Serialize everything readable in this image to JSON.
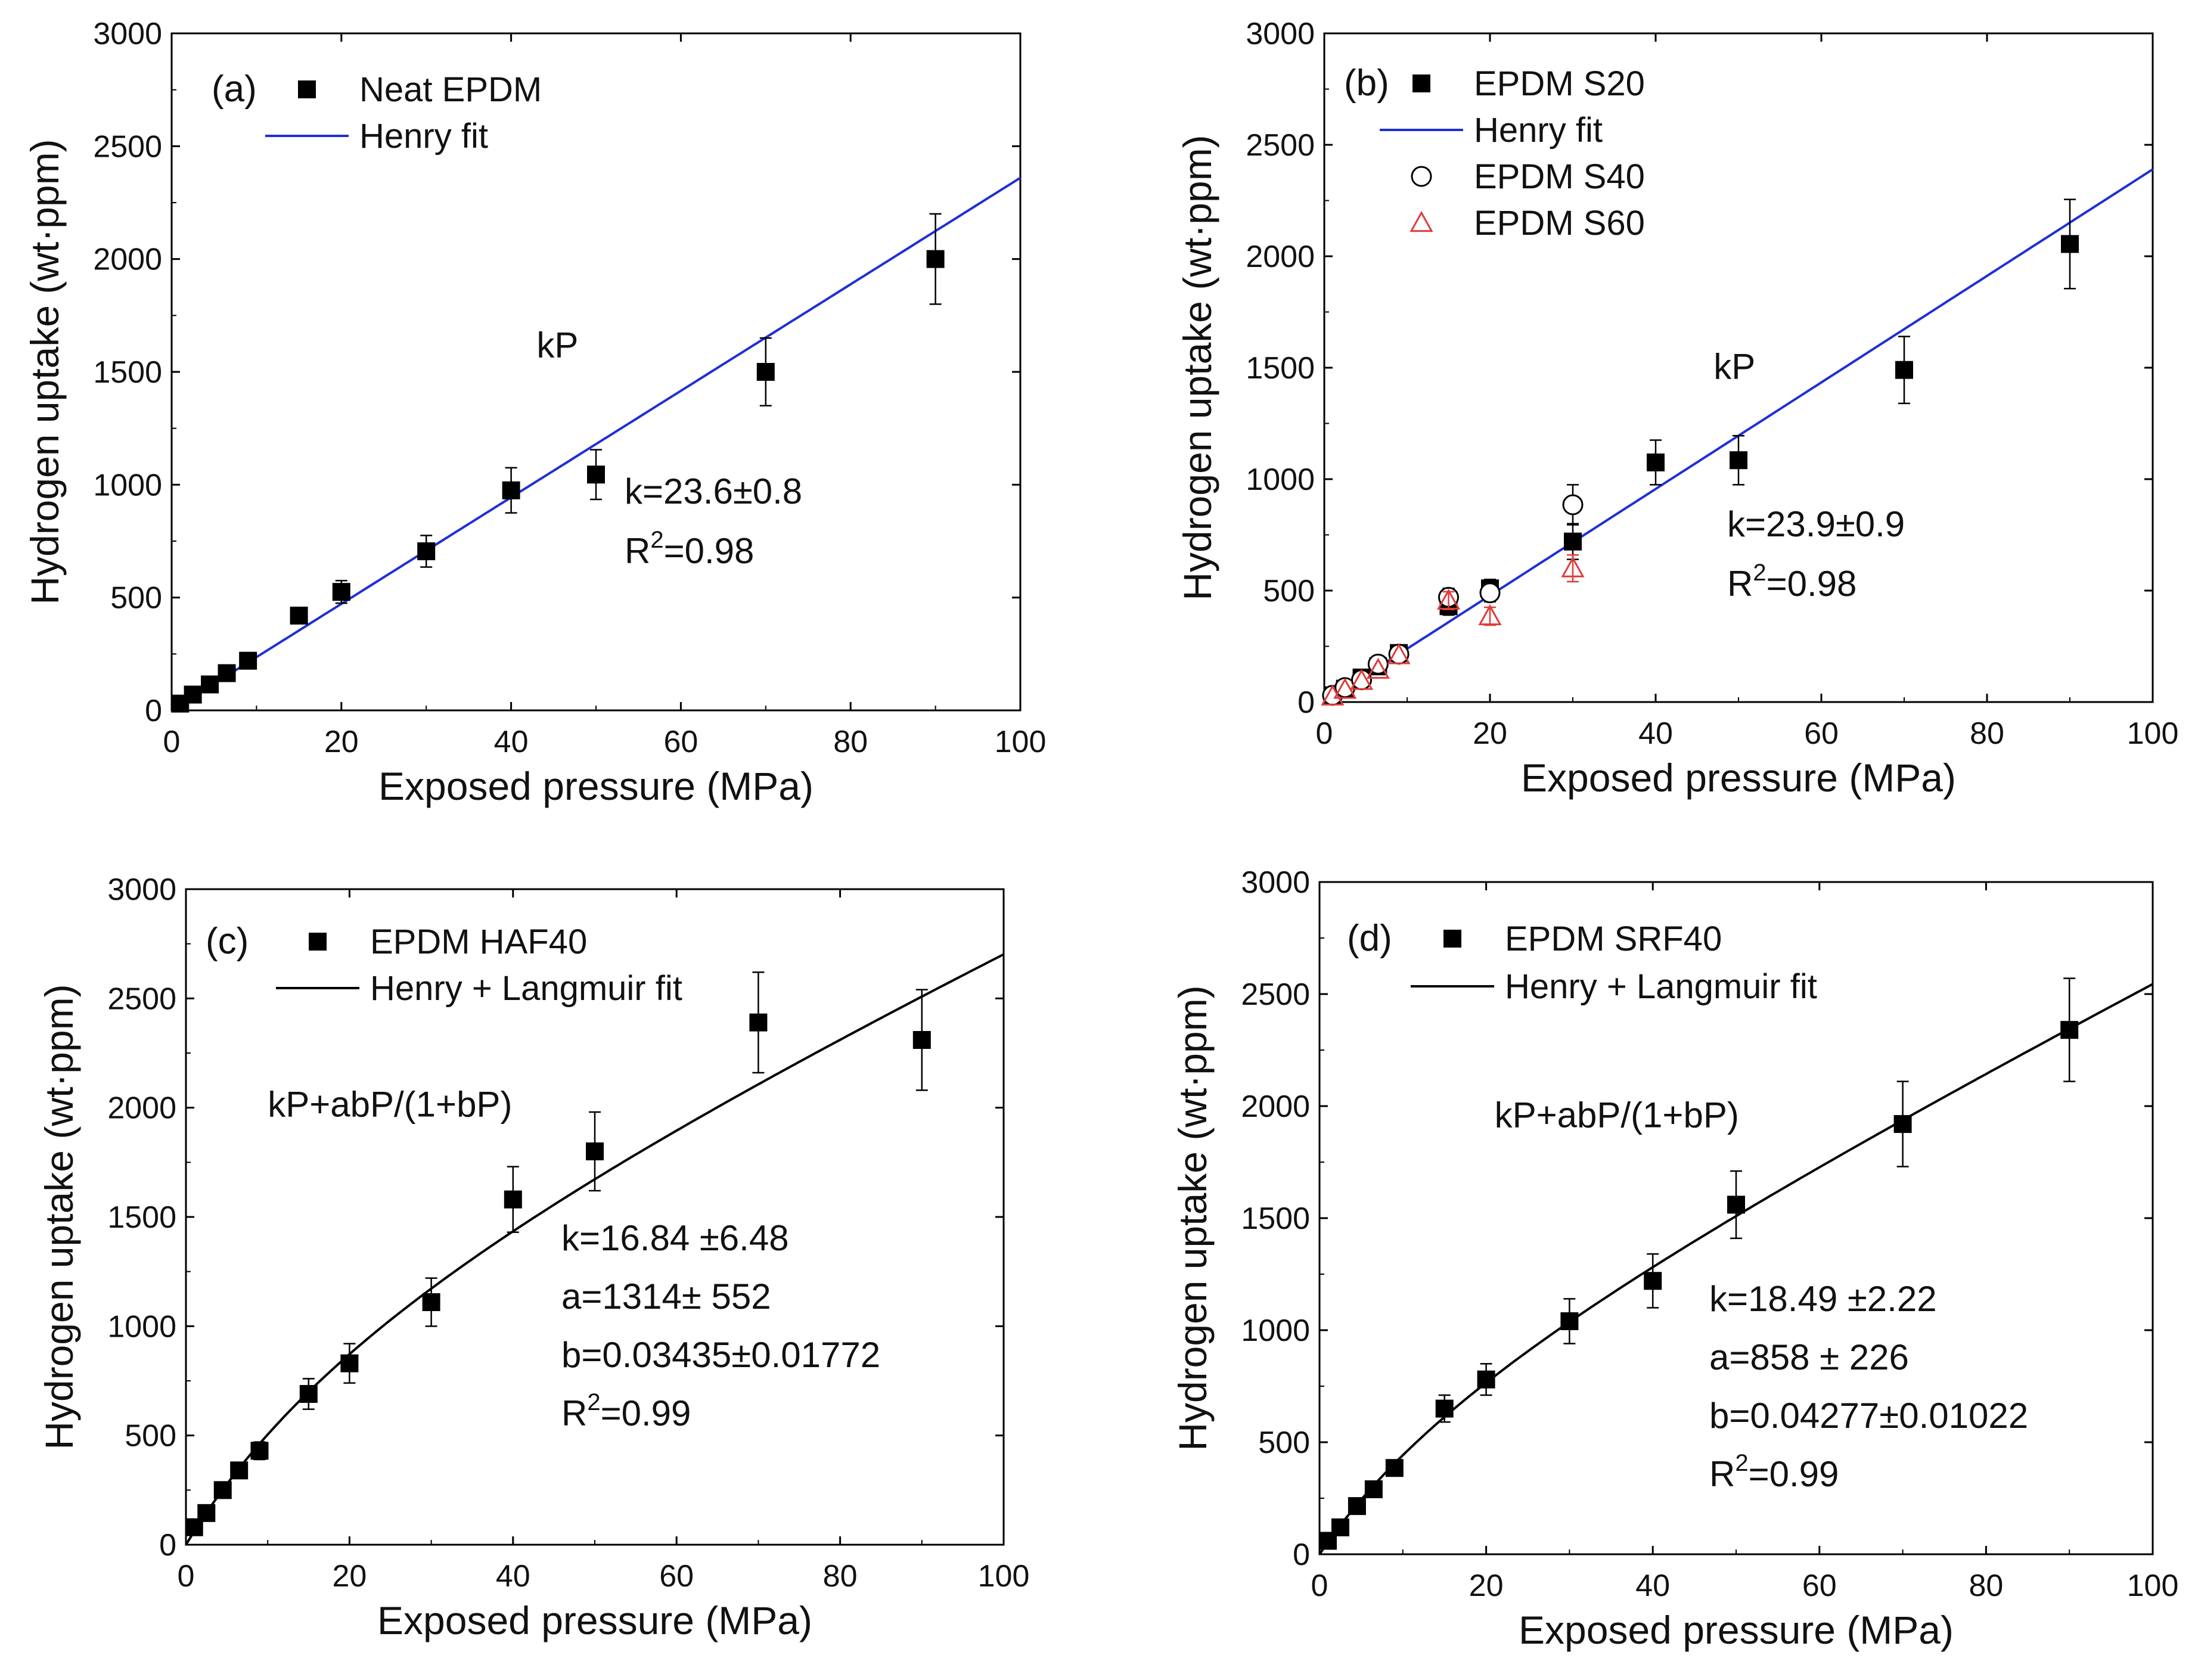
{
  "figure": {
    "colors": {
      "axis": "#000000",
      "henry_fit": "#1f2fd6",
      "langmuir_fit": "#000000",
      "s60": "#e03a3a",
      "marker": "#000000"
    },
    "units": {
      "pressure": "MPa",
      "uptake": "wt·ppm"
    }
  },
  "chart_data": [
    {
      "type": "scatter",
      "panel": "(a)",
      "xlabel": "Exposed pressure (MPa)",
      "ylabel": "Hydrogen uptake (wt·ppm)",
      "xlim": [
        0,
        100
      ],
      "ylim": [
        0,
        3000
      ],
      "xticks": [
        0,
        20,
        40,
        60,
        80,
        100
      ],
      "yticks": [
        0,
        500,
        1000,
        1500,
        2000,
        2500,
        3000
      ],
      "series": [
        {
          "name": "Neat EPDM",
          "marker": "square-filled",
          "x": [
            1,
            2.5,
            4.5,
            6.5,
            9,
            15,
            20,
            30,
            40,
            50,
            70,
            90
          ],
          "y": [
            30,
            70,
            115,
            165,
            220,
            420,
            525,
            705,
            975,
            1045,
            1500,
            2000
          ],
          "err": [
            0,
            0,
            0,
            0,
            0,
            0,
            50,
            70,
            100,
            110,
            150,
            200
          ]
        }
      ],
      "fit": {
        "name": "Henry fit",
        "model": "henry",
        "k": 23.6,
        "color": "#1f2fd6"
      },
      "legend": [
        {
          "label": "Neat EPDM",
          "symbol": "square-filled"
        },
        {
          "label": "Henry fit",
          "symbol": "line",
          "color": "#1f2fd6"
        }
      ],
      "equation": "kP",
      "annotations": [
        {
          "text": "k=23.6±0.8",
          "kind": "plain"
        },
        {
          "text": "R",
          "sup": "2",
          "rest": "=0.98",
          "kind": "r2"
        }
      ]
    },
    {
      "type": "scatter",
      "panel": "(b)",
      "xlabel": "Exposed pressure (MPa)",
      "ylabel": "Hydrogen uptake (wt·ppm)",
      "xlim": [
        0,
        100
      ],
      "ylim": [
        0,
        3000
      ],
      "xticks": [
        0,
        20,
        40,
        60,
        80,
        100
      ],
      "yticks": [
        0,
        500,
        1000,
        1500,
        2000,
        2500,
        3000
      ],
      "series": [
        {
          "name": "EPDM S20",
          "marker": "square-filled",
          "x": [
            1,
            2.5,
            4.5,
            6.5,
            9,
            15,
            20,
            30,
            40,
            50,
            70,
            90
          ],
          "y": [
            30,
            60,
            110,
            160,
            220,
            430,
            510,
            720,
            1075,
            1085,
            1490,
            2055
          ],
          "err": [
            0,
            0,
            0,
            0,
            0,
            40,
            40,
            80,
            100,
            110,
            150,
            200
          ]
        },
        {
          "name": "EPDM S40",
          "marker": "circle-open",
          "x": [
            1,
            2.5,
            4.5,
            6.5,
            9,
            15,
            20,
            30
          ],
          "y": [
            30,
            65,
            100,
            170,
            215,
            470,
            490,
            885
          ],
          "err": [
            0,
            0,
            0,
            0,
            0,
            40,
            40,
            90
          ]
        },
        {
          "name": "EPDM S60",
          "marker": "triangle-open",
          "color": "#e03a3a",
          "x": [
            1,
            2.5,
            4.5,
            6.5,
            9,
            15,
            20,
            30
          ],
          "y": [
            25,
            55,
            95,
            145,
            210,
            455,
            385,
            600
          ],
          "err": [
            0,
            0,
            0,
            0,
            0,
            40,
            40,
            60
          ]
        }
      ],
      "fit": {
        "name": "Henry fit",
        "model": "henry",
        "k": 23.9,
        "color": "#1f2fd6"
      },
      "legend": [
        {
          "label": "EPDM S20",
          "symbol": "square-filled"
        },
        {
          "label": "Henry fit",
          "symbol": "line",
          "color": "#1f2fd6"
        },
        {
          "label": "EPDM S40",
          "symbol": "circle-open"
        },
        {
          "label": "EPDM S60",
          "symbol": "triangle-open",
          "color": "#e03a3a"
        }
      ],
      "equation": "kP",
      "annotations": [
        {
          "text": "k=23.9±0.9",
          "kind": "plain"
        },
        {
          "text": "R",
          "sup": "2",
          "rest": "=0.98",
          "kind": "r2"
        }
      ]
    },
    {
      "type": "scatter",
      "panel": "(c)",
      "xlabel": "Exposed pressure (MPa)",
      "ylabel": "Hydrogen uptake (wt·ppm)",
      "xlim": [
        0,
        100
      ],
      "ylim": [
        0,
        3000
      ],
      "xticks": [
        0,
        20,
        40,
        60,
        80,
        100
      ],
      "yticks": [
        0,
        500,
        1000,
        1500,
        2000,
        2500,
        3000
      ],
      "series": [
        {
          "name": "EPDM HAF40",
          "marker": "square-filled",
          "x": [
            1,
            2.5,
            4.5,
            6.5,
            9,
            15,
            20,
            30,
            40,
            50,
            70,
            90
          ],
          "y": [
            80,
            145,
            250,
            340,
            430,
            690,
            830,
            1110,
            1580,
            1800,
            2390,
            2310
          ],
          "err": [
            0,
            0,
            0,
            0,
            40,
            70,
            90,
            110,
            150,
            180,
            230,
            230
          ]
        }
      ],
      "fit": {
        "name": "Henry + Langmuir fit",
        "model": "henry_langmuir",
        "k": 16.84,
        "a": 1314,
        "b": 0.03435,
        "color": "#000000"
      },
      "legend": [
        {
          "label": "EPDM HAF40",
          "symbol": "square-filled"
        },
        {
          "label": "Henry + Langmuir fit",
          "symbol": "line",
          "color": "#000000"
        }
      ],
      "equation": "kP+abP/(1+bP)",
      "annotations": [
        {
          "text": "k=16.84 ±6.48",
          "kind": "plain"
        },
        {
          "text": "a=1314± 552",
          "kind": "plain"
        },
        {
          "text": "b=0.03435±0.01772",
          "kind": "plain"
        },
        {
          "text": "R",
          "sup": "2",
          "rest": "=0.99",
          "kind": "r2"
        }
      ]
    },
    {
      "type": "scatter",
      "panel": "(d)",
      "xlabel": "Exposed pressure (MPa)",
      "ylabel": "Hydrogen uptake (wt·ppm)",
      "xlim": [
        0,
        100
      ],
      "ylim": [
        0,
        3000
      ],
      "xticks": [
        0,
        20,
        40,
        60,
        80,
        100
      ],
      "yticks": [
        0,
        500,
        1000,
        1500,
        2000,
        2500,
        3000
      ],
      "series": [
        {
          "name": "EPDM SRF40",
          "marker": "square-filled",
          "x": [
            1,
            2.5,
            4.5,
            6.5,
            9,
            15,
            20,
            30,
            40,
            50,
            70,
            90
          ],
          "y": [
            60,
            120,
            215,
            290,
            385,
            650,
            780,
            1040,
            1220,
            1560,
            1920,
            2340
          ],
          "err": [
            0,
            0,
            0,
            0,
            0,
            60,
            70,
            100,
            120,
            150,
            190,
            230
          ]
        }
      ],
      "fit": {
        "name": "Henry + Langmuir fit",
        "model": "henry_langmuir",
        "k": 18.49,
        "a": 858,
        "b": 0.04277,
        "color": "#000000"
      },
      "legend": [
        {
          "label": "EPDM SRF40",
          "symbol": "square-filled"
        },
        {
          "label": "Henry + Langmuir fit",
          "symbol": "line",
          "color": "#000000"
        }
      ],
      "equation": "kP+abP/(1+bP)",
      "annotations": [
        {
          "text": "k=18.49 ±2.22",
          "kind": "plain"
        },
        {
          "text": "a=858 ± 226",
          "kind": "plain"
        },
        {
          "text": "b=0.04277±0.01022",
          "kind": "plain"
        },
        {
          "text": "R",
          "sup": "2",
          "rest": "=0.99",
          "kind": "r2"
        }
      ]
    }
  ]
}
